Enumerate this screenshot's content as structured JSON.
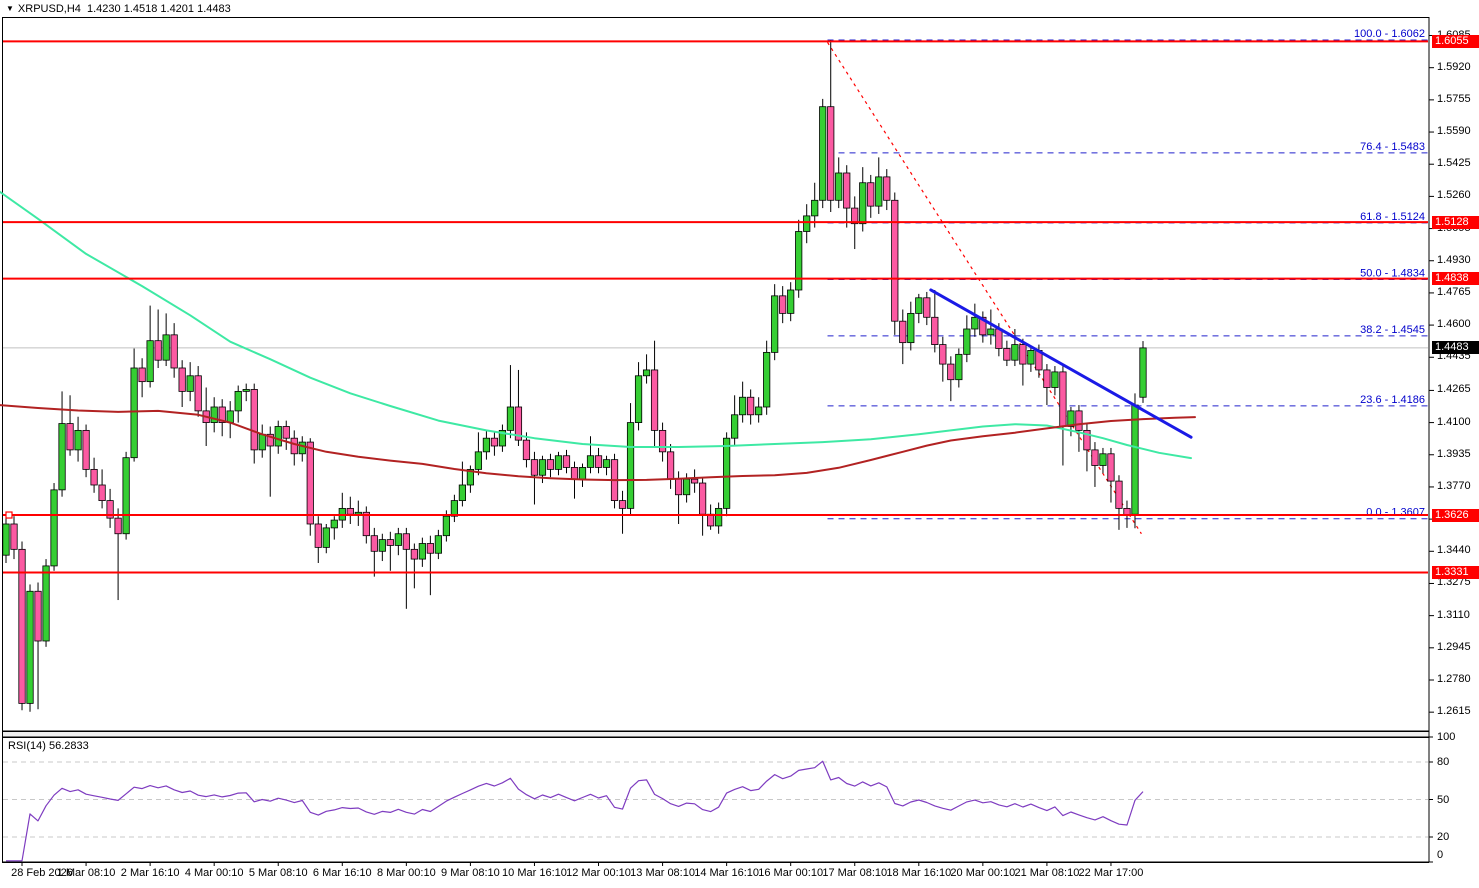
{
  "window": {
    "title": "XRPUSD,H4  1.4230 1.4518 1.4201 1.4483"
  },
  "colors": {
    "background": "#ffffff",
    "bull_body": "#35ce33",
    "bear_body": "#fb5aa2",
    "candle_outline": "#000000",
    "ma_fast": "#3ee9a4",
    "ma_slow": "#b22222",
    "trendline_blue": "#1a1ae6",
    "trendline_red_dashed": "#ff0000",
    "fib_line": "#2222cc",
    "fib_label": "#0000cc",
    "hline_red": "#ff0000",
    "current_price_line": "#c0c0c0",
    "badge_red": "#ff0000",
    "badge_black": "#000000",
    "rsi_line": "#7e3cc0",
    "rsi_levels": "#c8c8c8",
    "axis_text": "#000000"
  },
  "chart_data": {
    "type": "candlestick",
    "symbol": "XRPUSD",
    "timeframe": "H4",
    "current_bar": {
      "open": 1.423,
      "high": 1.4518,
      "low": 1.4201,
      "close": 1.4483
    },
    "current_price": 1.4483,
    "price_axis_labels": [
      "1.6085",
      "1.5920",
      "1.5755",
      "1.5590",
      "1.5425",
      "1.5260",
      "1.5095",
      "1.4930",
      "1.4765",
      "1.4600",
      "1.4435",
      "1.4265",
      "1.4100",
      "1.3935",
      "1.3770",
      "1.3605",
      "1.3440",
      "1.3275",
      "1.3110",
      "1.2945",
      "1.2780",
      "1.2615"
    ],
    "price_badges": [
      {
        "text": "1.6055",
        "bg": "badge_red"
      },
      {
        "text": "1.5128",
        "bg": "badge_red"
      },
      {
        "text": "1.4838",
        "bg": "badge_red"
      },
      {
        "text": "1.4483",
        "bg": "badge_black"
      },
      {
        "text": "1.3626",
        "bg": "badge_red"
      },
      {
        "text": "1.3331",
        "bg": "badge_red"
      }
    ],
    "time_axis": {
      "labels": [
        "28 Feb 2026",
        "1 Mar 08:10",
        "2 Mar 16:10",
        "4 Mar 00:10",
        "5 Mar 08:10",
        "6 Mar 16:10",
        "8 Mar 00:10",
        "9 Mar 08:10",
        "10 Mar 16:10",
        "12 Mar 00:10",
        "13 Mar 08:10",
        "14 Mar 16:10",
        "16 Mar 00:10",
        "17 Mar 08:10",
        "18 Mar 16:10",
        "20 Mar 00:10",
        "21 Mar 08:10",
        "22 Mar 17:00"
      ],
      "bar_indices": [
        2,
        10,
        18,
        26,
        34,
        42,
        50,
        58,
        66,
        74,
        82,
        90,
        98,
        106,
        114,
        122,
        130,
        138
      ]
    },
    "horizontal_lines": [
      {
        "price": 1.6055,
        "selected": false
      },
      {
        "price": 1.5128,
        "selected": false
      },
      {
        "price": 1.4838,
        "selected": false
      },
      {
        "price": 1.3626,
        "selected": true
      },
      {
        "price": 1.3331,
        "selected": false
      }
    ],
    "fibonacci": {
      "anchor_bar": 102.6,
      "levels": [
        {
          "pct": "100.0",
          "price": 1.6062
        },
        {
          "pct": "76.4",
          "price": 1.5483
        },
        {
          "pct": "61.8",
          "price": 1.5124
        },
        {
          "pct": "50.0",
          "price": 1.4834
        },
        {
          "pct": "38.2",
          "price": 1.4545
        },
        {
          "pct": "23.6",
          "price": 1.4186
        },
        {
          "pct": "0.0",
          "price": 1.3607
        }
      ]
    },
    "trendlines": [
      {
        "name": "descending-blue-trendline",
        "from": [
          115.5,
          1.478
        ],
        "to": [
          148.0,
          1.4025
        ],
        "style": "solid",
        "width": 3,
        "color": "trendline_blue"
      },
      {
        "name": "descending-red-dashed-trendline",
        "from": [
          102.6,
          1.605
        ],
        "to": [
          141.8,
          1.353
        ],
        "style": "dashed",
        "width": 1.2,
        "color": "trendline_red_dashed"
      }
    ],
    "moving_averages": [
      {
        "name": "ma-fast-green",
        "color": "ma_fast",
        "width": 2,
        "points": [
          [
            -1,
            1.529
          ],
          [
            4,
            1.5145
          ],
          [
            10,
            1.4965
          ],
          [
            17,
            1.48
          ],
          [
            23,
            1.465
          ],
          [
            28,
            1.4515
          ],
          [
            33,
            1.4425
          ],
          [
            38,
            1.433
          ],
          [
            43,
            1.425
          ],
          [
            48,
            1.4185
          ],
          [
            54,
            1.411
          ],
          [
            60,
            1.406
          ],
          [
            66,
            1.402
          ],
          [
            72,
            1.399
          ],
          [
            78,
            1.3975
          ],
          [
            84,
            1.3975
          ],
          [
            90,
            1.398
          ],
          [
            96,
            1.399
          ],
          [
            102,
            1.4
          ],
          [
            108,
            1.4015
          ],
          [
            114,
            1.404
          ],
          [
            118,
            1.406
          ],
          [
            122,
            1.408
          ],
          [
            126,
            1.4092
          ],
          [
            130,
            1.4085
          ],
          [
            134,
            1.405
          ],
          [
            137,
            1.402
          ],
          [
            140,
            1.3985
          ],
          [
            144,
            1.3945
          ],
          [
            148,
            1.3918
          ]
        ]
      },
      {
        "name": "ma-slow-darkred",
        "color": "ma_slow",
        "width": 2,
        "points": [
          [
            -1,
            1.419
          ],
          [
            4,
            1.4175
          ],
          [
            9,
            1.4162
          ],
          [
            14,
            1.4155
          ],
          [
            19,
            1.416
          ],
          [
            24,
            1.414
          ],
          [
            28,
            1.41
          ],
          [
            32,
            1.404
          ],
          [
            36,
            1.399
          ],
          [
            40,
            1.395
          ],
          [
            44,
            1.3925
          ],
          [
            48,
            1.3905
          ],
          [
            52,
            1.3888
          ],
          [
            56,
            1.3862
          ],
          [
            60,
            1.384
          ],
          [
            64,
            1.3825
          ],
          [
            68,
            1.3815
          ],
          [
            72,
            1.3808
          ],
          [
            76,
            1.3805
          ],
          [
            80,
            1.3806
          ],
          [
            84,
            1.3812
          ],
          [
            88,
            1.382
          ],
          [
            92,
            1.3826
          ],
          [
            96,
            1.383
          ],
          [
            100,
            1.3842
          ],
          [
            104,
            1.3868
          ],
          [
            108,
            1.3908
          ],
          [
            112,
            1.395
          ],
          [
            115,
            1.3982
          ],
          [
            118,
            1.4008
          ],
          [
            122,
            1.403
          ],
          [
            126,
            1.4048
          ],
          [
            130,
            1.407
          ],
          [
            134,
            1.4092
          ],
          [
            138,
            1.4108
          ],
          [
            142,
            1.4118
          ],
          [
            146,
            1.4125
          ],
          [
            148.5,
            1.4128
          ]
        ]
      }
    ],
    "ohlc": [
      [
        1.342,
        1.363,
        1.338,
        1.358
      ],
      [
        1.358,
        1.362,
        1.34,
        1.345
      ],
      [
        1.345,
        1.349,
        1.2625,
        1.266
      ],
      [
        1.266,
        1.327,
        1.2617,
        1.3235
      ],
      [
        1.3235,
        1.328,
        1.263,
        1.298
      ],
      [
        1.298,
        1.34,
        1.295,
        1.3365
      ],
      [
        1.3365,
        1.379,
        1.334,
        1.3755
      ],
      [
        1.3755,
        1.426,
        1.372,
        1.4095
      ],
      [
        1.4095,
        1.424,
        1.393,
        1.396
      ],
      [
        1.396,
        1.413,
        1.39,
        1.406
      ],
      [
        1.406,
        1.409,
        1.382,
        1.386
      ],
      [
        1.386,
        1.392,
        1.374,
        1.378
      ],
      [
        1.378,
        1.386,
        1.366,
        1.37
      ],
      [
        1.37,
        1.376,
        1.356,
        1.361
      ],
      [
        1.361,
        1.366,
        1.319,
        1.353
      ],
      [
        1.353,
        1.395,
        1.35,
        1.392
      ],
      [
        1.392,
        1.448,
        1.39,
        1.438
      ],
      [
        1.438,
        1.443,
        1.423,
        1.431
      ],
      [
        1.431,
        1.47,
        1.428,
        1.452
      ],
      [
        1.452,
        1.468,
        1.438,
        1.442
      ],
      [
        1.442,
        1.466,
        1.439,
        1.455
      ],
      [
        1.455,
        1.461,
        1.433,
        1.438
      ],
      [
        1.438,
        1.442,
        1.418,
        1.426
      ],
      [
        1.426,
        1.441,
        1.421,
        1.434
      ],
      [
        1.434,
        1.439,
        1.413,
        1.416
      ],
      [
        1.416,
        1.428,
        1.398,
        1.41
      ],
      [
        1.41,
        1.423,
        1.405,
        1.418
      ],
      [
        1.418,
        1.422,
        1.403,
        1.41
      ],
      [
        1.41,
        1.421,
        1.402,
        1.416
      ],
      [
        1.416,
        1.429,
        1.41,
        1.426
      ],
      [
        1.426,
        1.43,
        1.421,
        1.427
      ],
      [
        1.427,
        1.43,
        1.389,
        1.396
      ],
      [
        1.396,
        1.409,
        1.392,
        1.404
      ],
      [
        1.404,
        1.408,
        1.372,
        1.398
      ],
      [
        1.398,
        1.411,
        1.394,
        1.408
      ],
      [
        1.408,
        1.411,
        1.396,
        1.402
      ],
      [
        1.402,
        1.406,
        1.388,
        1.394
      ],
      [
        1.394,
        1.403,
        1.39,
        1.4
      ],
      [
        1.4,
        1.402,
        1.352,
        1.358
      ],
      [
        1.358,
        1.362,
        1.338,
        1.346
      ],
      [
        1.346,
        1.358,
        1.343,
        1.356
      ],
      [
        1.356,
        1.362,
        1.35,
        1.36
      ],
      [
        1.36,
        1.374,
        1.356,
        1.366
      ],
      [
        1.366,
        1.372,
        1.358,
        1.363
      ],
      [
        1.363,
        1.37,
        1.357,
        1.364
      ],
      [
        1.364,
        1.367,
        1.348,
        1.352
      ],
      [
        1.352,
        1.356,
        1.331,
        1.344
      ],
      [
        1.344,
        1.353,
        1.339,
        1.35
      ],
      [
        1.35,
        1.354,
        1.334,
        1.347
      ],
      [
        1.347,
        1.356,
        1.342,
        1.353
      ],
      [
        1.353,
        1.356,
        1.3145,
        1.345
      ],
      [
        1.345,
        1.348,
        1.325,
        1.34
      ],
      [
        1.34,
        1.351,
        1.336,
        1.348
      ],
      [
        1.348,
        1.352,
        1.3215,
        1.343
      ],
      [
        1.343,
        1.355,
        1.34,
        1.352
      ],
      [
        1.352,
        1.365,
        1.349,
        1.362
      ],
      [
        1.362,
        1.373,
        1.359,
        1.37
      ],
      [
        1.37,
        1.39,
        1.367,
        1.378
      ],
      [
        1.378,
        1.388,
        1.374,
        1.386
      ],
      [
        1.386,
        1.405,
        1.383,
        1.395
      ],
      [
        1.395,
        1.406,
        1.391,
        1.402
      ],
      [
        1.402,
        1.405,
        1.393,
        1.398
      ],
      [
        1.398,
        1.409,
        1.395,
        1.406
      ],
      [
        1.406,
        1.4395,
        1.402,
        1.418
      ],
      [
        1.418,
        1.437,
        1.398,
        1.401
      ],
      [
        1.401,
        1.405,
        1.387,
        1.391
      ],
      [
        1.391,
        1.395,
        1.368,
        1.383
      ],
      [
        1.383,
        1.393,
        1.379,
        1.391
      ],
      [
        1.391,
        1.394,
        1.382,
        1.386
      ],
      [
        1.386,
        1.395,
        1.383,
        1.393
      ],
      [
        1.393,
        1.396,
        1.384,
        1.387
      ],
      [
        1.387,
        1.39,
        1.371,
        1.381
      ],
      [
        1.381,
        1.389,
        1.377,
        1.387
      ],
      [
        1.387,
        1.403,
        1.384,
        1.393
      ],
      [
        1.393,
        1.397,
        1.384,
        1.387
      ],
      [
        1.387,
        1.393,
        1.383,
        1.391
      ],
      [
        1.391,
        1.394,
        1.366,
        1.37
      ],
      [
        1.37,
        1.375,
        1.353,
        1.366
      ],
      [
        1.366,
        1.42,
        1.363,
        1.41
      ],
      [
        1.41,
        1.441,
        1.406,
        1.434
      ],
      [
        1.434,
        1.445,
        1.43,
        1.437
      ],
      [
        1.437,
        1.452,
        1.398,
        1.406
      ],
      [
        1.406,
        1.41,
        1.39,
        1.395
      ],
      [
        1.395,
        1.399,
        1.376,
        1.381
      ],
      [
        1.381,
        1.385,
        1.358,
        1.373
      ],
      [
        1.373,
        1.384,
        1.369,
        1.381
      ],
      [
        1.381,
        1.386,
        1.374,
        1.379
      ],
      [
        1.379,
        1.382,
        1.352,
        1.363
      ],
      [
        1.363,
        1.368,
        1.355,
        1.357
      ],
      [
        1.357,
        1.369,
        1.353,
        1.366
      ],
      [
        1.366,
        1.405,
        1.362,
        1.402
      ],
      [
        1.402,
        1.424,
        1.398,
        1.414
      ],
      [
        1.414,
        1.431,
        1.41,
        1.423
      ],
      [
        1.423,
        1.427,
        1.409,
        1.414
      ],
      [
        1.414,
        1.423,
        1.41,
        1.418
      ],
      [
        1.418,
        1.452,
        1.414,
        1.446
      ],
      [
        1.446,
        1.481,
        1.442,
        1.475
      ],
      [
        1.475,
        1.48,
        1.461,
        1.466
      ],
      [
        1.466,
        1.482,
        1.462,
        1.478
      ],
      [
        1.478,
        1.514,
        1.474,
        1.508
      ],
      [
        1.508,
        1.522,
        1.502,
        1.516
      ],
      [
        1.516,
        1.533,
        1.51,
        1.524
      ],
      [
        1.524,
        1.576,
        1.52,
        1.572
      ],
      [
        1.572,
        1.6062,
        1.518,
        1.524
      ],
      [
        1.524,
        1.546,
        1.52,
        1.538
      ],
      [
        1.538,
        1.542,
        1.51,
        1.52
      ],
      [
        1.52,
        1.526,
        1.499,
        1.512
      ],
      [
        1.512,
        1.541,
        1.508,
        1.533
      ],
      [
        1.533,
        1.537,
        1.515,
        1.521
      ],
      [
        1.521,
        1.546,
        1.517,
        1.536
      ],
      [
        1.536,
        1.54,
        1.519,
        1.524
      ],
      [
        1.524,
        1.528,
        1.455,
        1.462
      ],
      [
        1.462,
        1.468,
        1.44,
        1.451
      ],
      [
        1.451,
        1.472,
        1.447,
        1.466
      ],
      [
        1.466,
        1.476,
        1.461,
        1.474
      ],
      [
        1.474,
        1.477,
        1.46,
        1.464
      ],
      [
        1.464,
        1.478,
        1.446,
        1.45
      ],
      [
        1.45,
        1.454,
        1.431,
        1.44
      ],
      [
        1.44,
        1.444,
        1.421,
        1.432
      ],
      [
        1.432,
        1.448,
        1.428,
        1.445
      ],
      [
        1.445,
        1.465,
        1.441,
        1.458
      ],
      [
        1.458,
        1.471,
        1.454,
        1.464
      ],
      [
        1.464,
        1.467,
        1.451,
        1.455
      ],
      [
        1.455,
        1.468,
        1.45,
        1.458
      ],
      [
        1.458,
        1.461,
        1.444,
        1.448
      ],
      [
        1.448,
        1.452,
        1.439,
        1.442
      ],
      [
        1.442,
        1.458,
        1.439,
        1.45
      ],
      [
        1.45,
        1.453,
        1.429,
        1.44
      ],
      [
        1.44,
        1.449,
        1.436,
        1.447
      ],
      [
        1.447,
        1.45,
        1.433,
        1.437
      ],
      [
        1.437,
        1.44,
        1.419,
        1.428
      ],
      [
        1.428,
        1.439,
        1.424,
        1.436
      ],
      [
        1.436,
        1.439,
        1.388,
        1.408
      ],
      [
        1.408,
        1.418,
        1.403,
        1.416
      ],
      [
        1.416,
        1.419,
        1.395,
        1.406
      ],
      [
        1.406,
        1.41,
        1.385,
        1.396
      ],
      [
        1.396,
        1.4,
        1.377,
        1.388
      ],
      [
        1.388,
        1.397,
        1.384,
        1.394
      ],
      [
        1.394,
        1.397,
        1.369,
        1.38
      ],
      [
        1.38,
        1.383,
        1.355,
        1.366
      ],
      [
        1.366,
        1.37,
        1.356,
        1.3628
      ],
      [
        1.363,
        1.425,
        1.3558,
        1.419
      ],
      [
        1.423,
        1.4518,
        1.4201,
        1.4483
      ]
    ],
    "rsi": {
      "label": "RSI(14) 56.2833",
      "period": 14,
      "value": 56.2833,
      "dashed_levels": [
        80,
        50,
        20
      ],
      "axis_labels": [
        "100",
        "80",
        "50",
        "20",
        "0"
      ]
    }
  }
}
